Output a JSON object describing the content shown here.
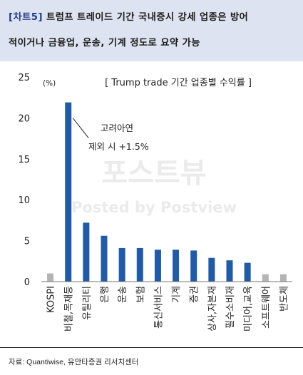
{
  "header": {
    "tag": "[차트5]",
    "title_line1": "트럼프 트레이드 기간 국내증시 강세 업종은 방어",
    "title_line2": "적이거나 금융업, 운송, 기계 정도로 요약 가능"
  },
  "source": "자료: Quantiwise, 유안타증권 리서치센터",
  "watermark": {
    "line1": "포스트뷰",
    "line2": "Posted by Postview"
  },
  "colors": {
    "bar_main": "#1f5ba8",
    "bar_gray": "#b4b4b4",
    "header_bg": "#dde3f0",
    "tag": "#1f3c8c"
  },
  "chart_data": {
    "type": "bar",
    "title": "[ Trump trade 기간 업종별 수익률 ]",
    "unit": "(%)",
    "ylim": [
      0,
      25
    ],
    "yticks": [
      0,
      5,
      10,
      15,
      20,
      25
    ],
    "categories": [
      "KOSPI",
      "비철,목재등",
      "유틸리티",
      "은행",
      "운송",
      "보험",
      "통신서비스",
      "기계",
      "증권",
      "상사,자본재",
      "필수소비재",
      "미디어,교육",
      "소프트웨어",
      "반도체"
    ],
    "values": [
      1.0,
      21.9,
      7.2,
      5.6,
      4.1,
      4.1,
      3.9,
      3.9,
      3.8,
      2.9,
      2.6,
      2.3,
      0.9,
      0.9
    ],
    "highlight": [
      false,
      true,
      true,
      true,
      true,
      true,
      true,
      true,
      true,
      true,
      true,
      true,
      false,
      false
    ],
    "annotation": {
      "line1": "고려아연",
      "line2": "제외 시 +1.5%"
    },
    "grid": false,
    "legend": "none"
  }
}
